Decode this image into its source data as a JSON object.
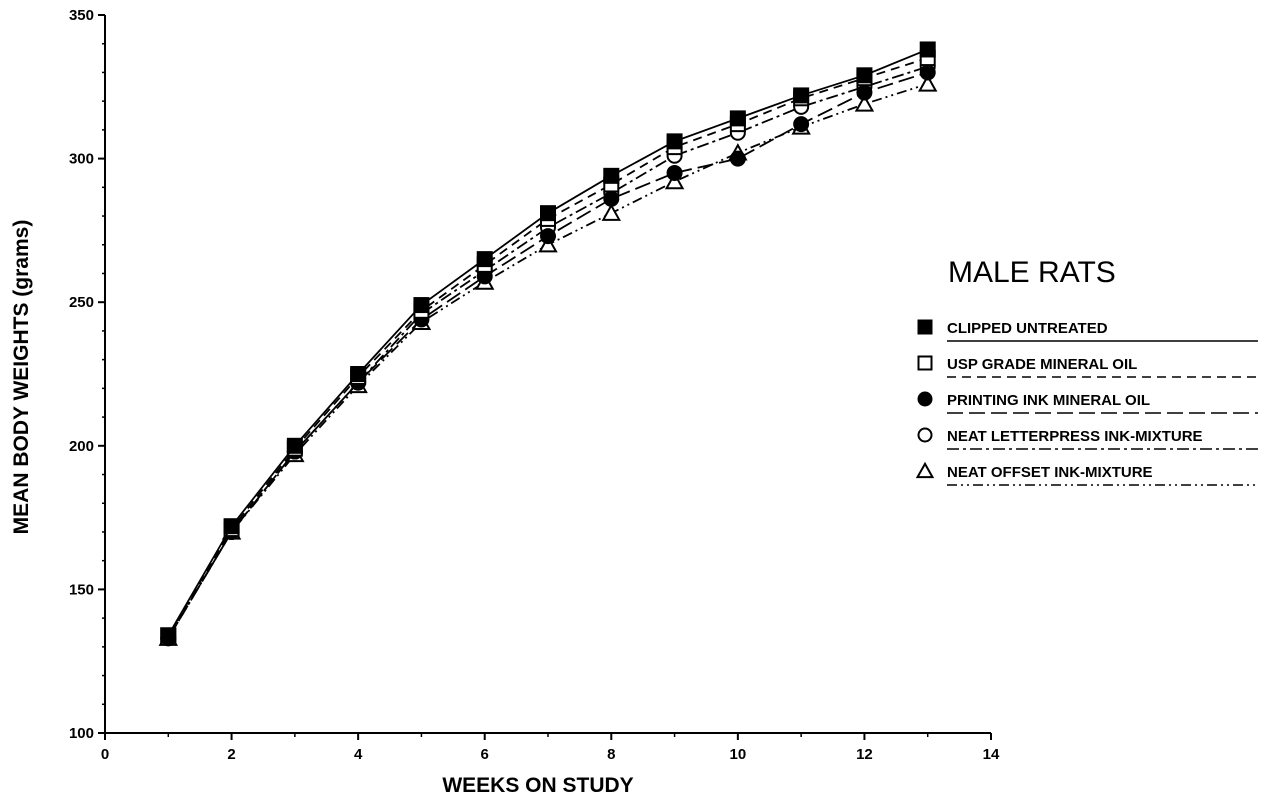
{
  "chart_data": {
    "type": "line",
    "title": "",
    "xlabel": "WEEKS ON STUDY",
    "ylabel": "MEAN BODY WEIGHTS (grams)",
    "xlim": [
      0,
      14
    ],
    "ylim": [
      100,
      350
    ],
    "xticks": [
      0,
      2,
      4,
      6,
      8,
      10,
      12,
      14
    ],
    "yticks": [
      100,
      150,
      200,
      250,
      300,
      350
    ],
    "grid": false,
    "legend": {
      "title": "MALE RATS",
      "placement": "right"
    },
    "x": [
      1,
      2,
      3,
      4,
      5,
      6,
      7,
      8,
      9,
      10,
      11,
      12,
      13
    ],
    "series": [
      {
        "name": "CLIPPED UNTREATED",
        "marker": "filled-square",
        "line": "solid",
        "values": [
          134,
          172,
          200,
          225,
          249,
          265,
          281,
          294,
          306,
          314,
          322,
          329,
          338
        ]
      },
      {
        "name": "USP GRADE MINERAL OIL",
        "marker": "open-square",
        "line": "dashed",
        "values": [
          134,
          171,
          199,
          224,
          247,
          263,
          279,
          291,
          304,
          312,
          321,
          328,
          335
        ]
      },
      {
        "name": "PRINTING INK MINERAL OIL",
        "marker": "filled-circle",
        "line": "long-dash",
        "values": [
          133,
          170,
          198,
          222,
          244,
          259,
          273,
          286,
          295,
          300,
          312,
          323,
          330
        ]
      },
      {
        "name": "NEAT LETTERPRESS INK-MIXTURE",
        "marker": "open-circle",
        "line": "dash-dot",
        "values": [
          133,
          170,
          198,
          222,
          246,
          261,
          276,
          288,
          301,
          309,
          318,
          325,
          332
        ]
      },
      {
        "name": "NEAT OFFSET INK-MIXTURE",
        "marker": "open-triangle",
        "line": "dash-dot-dot",
        "values": [
          133,
          170,
          197,
          221,
          243,
          257,
          270,
          281,
          292,
          302,
          311,
          319,
          326
        ]
      }
    ]
  }
}
